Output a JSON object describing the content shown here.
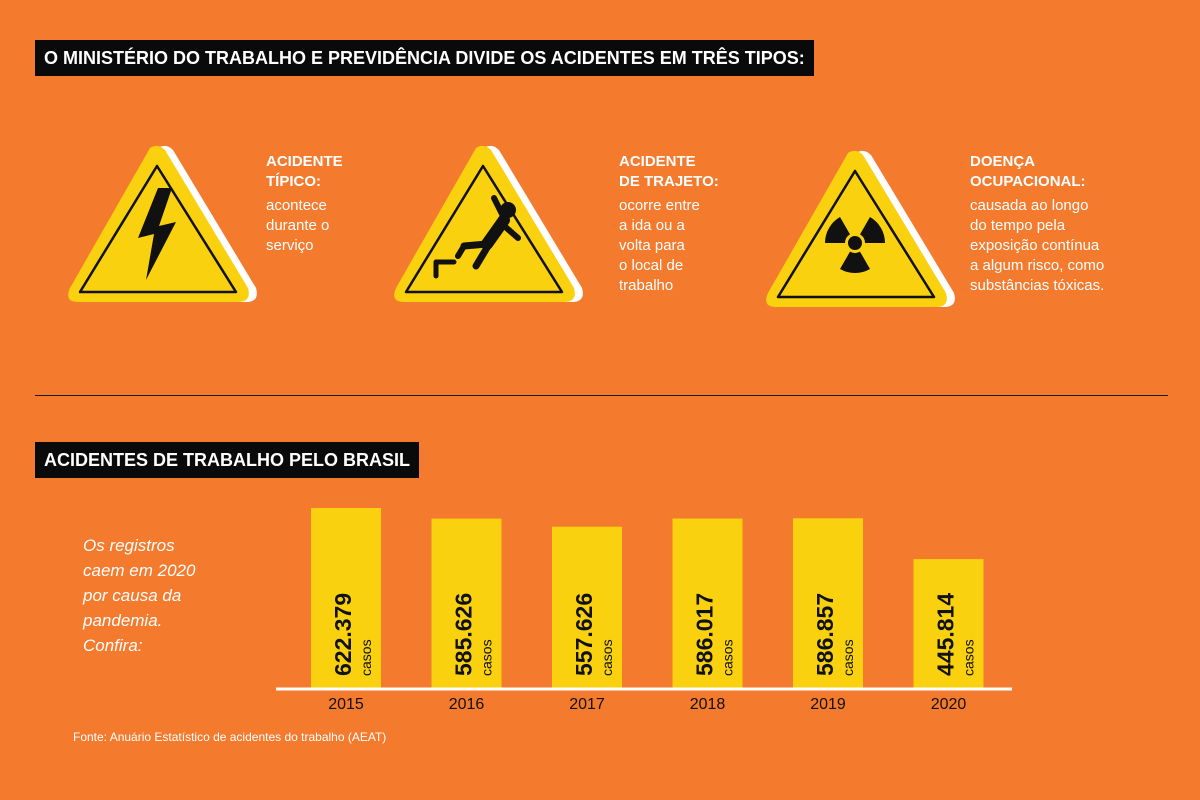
{
  "section1": {
    "title": "O MINISTÉRIO DO TRABALHO E PREVIDÊNCIA DIVIDE OS ACIDENTES EM TRÊS TIPOS:",
    "types": [
      {
        "icon": "lightning-icon",
        "title_lines": [
          "ACIDENTE",
          "TÍPICO:"
        ],
        "desc_lines": [
          "acontece",
          "durante o",
          "serviço"
        ]
      },
      {
        "icon": "falling-person-icon",
        "title_lines": [
          "ACIDENTE",
          "DE TRAJETO:"
        ],
        "desc_lines": [
          "ocorre entre",
          "a ida ou a",
          "volta para",
          "o local de",
          "trabalho"
        ]
      },
      {
        "icon": "radiation-icon",
        "title_lines": [
          "DOENÇA",
          "OCUPACIONAL:"
        ],
        "desc_lines": [
          "causada ao longo",
          "do tempo pela",
          "exposição contínua",
          "a algum risco, como",
          "substâncias tóxicas."
        ]
      }
    ]
  },
  "section2": {
    "title": "ACIDENTES DE TRABALHO PELO BRASIL",
    "note_lines": [
      "Os registros",
      "caem em 2020",
      "por causa da",
      "pandemia.",
      "Confira:"
    ]
  },
  "chart_data": {
    "type": "bar",
    "title": "ACIDENTES DE TRABALHO PELO BRASIL",
    "categories": [
      "2015",
      "2016",
      "2017",
      "2018",
      "2019",
      "2020"
    ],
    "values": [
      622379,
      585626,
      557626,
      586017,
      586857,
      445814
    ],
    "value_labels": [
      "622.379",
      "585.626",
      "557.626",
      "586.017",
      "586.857",
      "445.814"
    ],
    "unit_label": "casos",
    "bar_color": "#F9D10F",
    "grid": false,
    "legend": "none"
  },
  "source": "Fonte: Anuário Estatístico de acidentes do trabalho (AEAT)",
  "colors": {
    "background": "#F47A2E",
    "accent": "#F9D10F",
    "dark": "#0A0A0A",
    "text": "#FFFFFF"
  }
}
